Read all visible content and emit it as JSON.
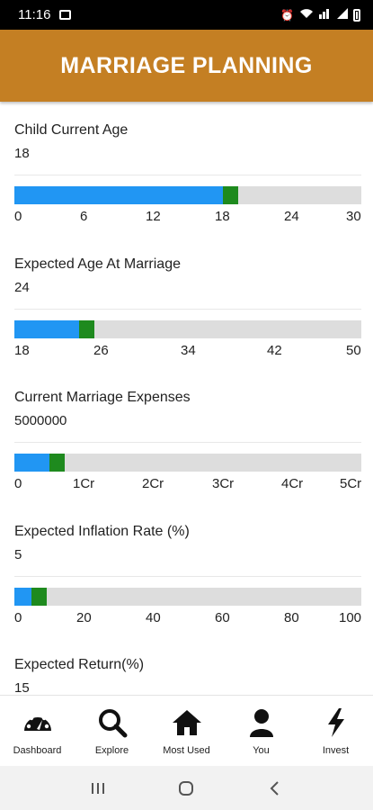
{
  "status_bar": {
    "time": "11:16",
    "icons": [
      "image-icon",
      "alarm-icon",
      "wifi-icon",
      "volte-icon",
      "signal-icon",
      "battery-icon"
    ]
  },
  "header": {
    "title": "MARRIAGE PLANNING",
    "color": "#C47F23"
  },
  "fields": [
    {
      "label": "Child Current Age",
      "value": "18",
      "slider": {
        "fill_fraction": 0.6,
        "ticks": [
          "0",
          "6",
          "12",
          "18",
          "24",
          "30"
        ]
      }
    },
    {
      "label": "Expected Age At Marriage",
      "value": "24",
      "slider": {
        "fill_fraction": 0.1875,
        "ticks": [
          "18",
          "26",
          "34",
          "42",
          "50"
        ]
      }
    },
    {
      "label": "Current Marriage Expenses",
      "value": "5000000",
      "slider": {
        "fill_fraction": 0.1,
        "ticks": [
          "0",
          "1Cr",
          "2Cr",
          "3Cr",
          "4Cr",
          "5Cr"
        ]
      }
    },
    {
      "label": "Expected Inflation Rate (%)",
      "value": "5",
      "slider": {
        "fill_fraction": 0.05,
        "ticks": [
          "0",
          "20",
          "40",
          "60",
          "80",
          "100"
        ]
      }
    },
    {
      "label": "Expected Return(%)",
      "value": "15"
    }
  ],
  "slider_colors": {
    "fill": "#2196F3",
    "thumb": "#1E8A1E",
    "track": "#DDDDDD"
  },
  "bottom_nav": [
    {
      "label": "Dashboard",
      "icon": "dashboard-icon"
    },
    {
      "label": "Explore",
      "icon": "search-icon"
    },
    {
      "label": "Most Used",
      "icon": "home-icon"
    },
    {
      "label": "You",
      "icon": "person-icon"
    },
    {
      "label": "Invest",
      "icon": "lightning-icon"
    }
  ]
}
